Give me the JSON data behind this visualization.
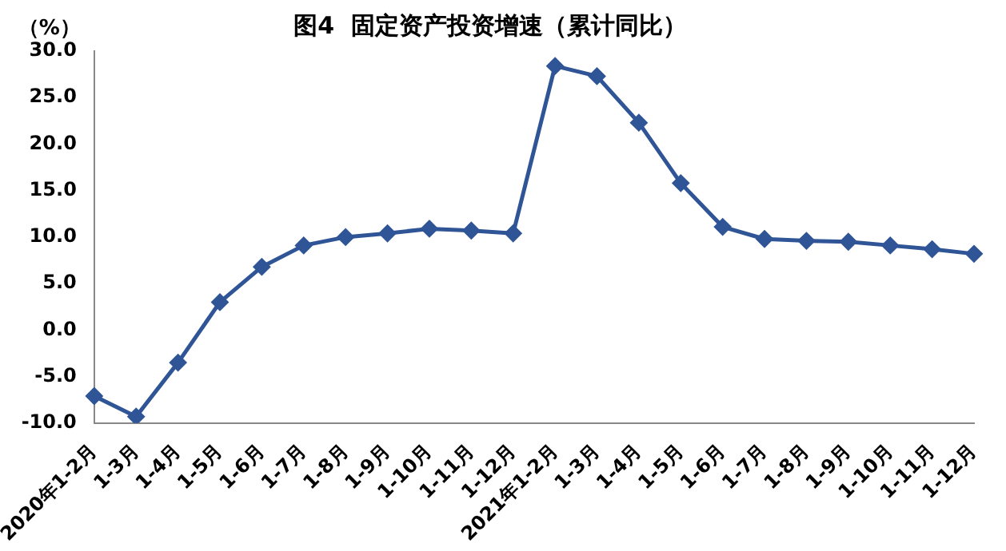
{
  "chart_data": {
    "type": "line",
    "title": "图4  固定资产投资增速（累计同比）",
    "ylabel": "（%）",
    "categories": [
      "2020年1-2月",
      "1-3月",
      "1-4月",
      "1-5月",
      "1-6月",
      "1-7月",
      "1-8月",
      "1-9月",
      "1-10月",
      "1-11月",
      "1-12月",
      "2021年1-2月",
      "1-3月",
      "1-4月",
      "1-5月",
      "1-6月",
      "1-7月",
      "1-8月",
      "1-9月",
      "1-10月",
      "1-11月",
      "1-12月"
    ],
    "series": [
      {
        "color": "#2f5597",
        "values": [
          -7.1,
          -9.3,
          -3.5,
          3.0,
          6.8,
          9.1,
          10.0,
          10.4,
          10.9,
          10.7,
          10.4,
          28.4,
          27.3,
          22.3,
          15.8,
          11.1,
          9.8,
          9.6,
          9.5,
          9.1,
          8.7,
          8.2
        ]
      }
    ],
    "ylim": [
      -10,
      30
    ],
    "yticks": [
      {
        "value": -10,
        "label": "-10.0"
      },
      {
        "value": -5,
        "label": "-5.0"
      },
      {
        "value": 0,
        "label": "0.0"
      },
      {
        "value": 5,
        "label": "5.0"
      },
      {
        "value": 10,
        "label": "10.0"
      },
      {
        "value": 15,
        "label": "15.0"
      },
      {
        "value": 20,
        "label": "20.0"
      },
      {
        "value": 25,
        "label": "25.0"
      },
      {
        "value": 30,
        "label": "30.0"
      }
    ],
    "grid": false,
    "legend": false,
    "marker": "diamond",
    "line_style": "solid"
  }
}
